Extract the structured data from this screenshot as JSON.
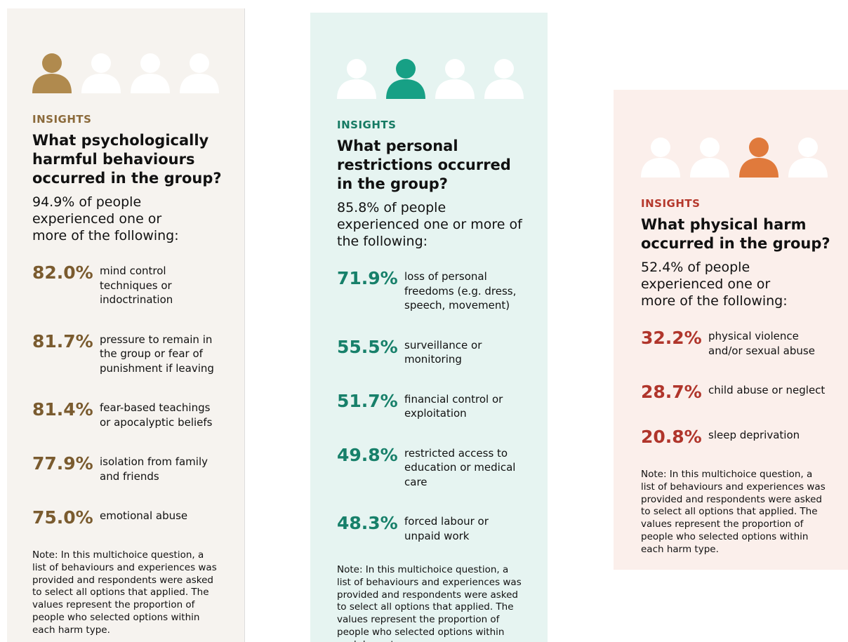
{
  "cards": [
    {
      "label": "INSIGHTS",
      "title": "What psychologically harmful behaviours occurred in the group?",
      "summary": "94.9% of people experienced one or more of the following:",
      "items": [
        {
          "percent": "82.0%",
          "text": "mind control techniques or indoctrination"
        },
        {
          "percent": "81.7%",
          "text": "pressure to remain in the group or fear of punishment if leaving"
        },
        {
          "percent": "81.4%",
          "text": "fear-based teachings or apocalyptic beliefs"
        },
        {
          "percent": "77.9%",
          "text": "isolation from family and friends"
        },
        {
          "percent": "75.0%",
          "text": "emotional abuse"
        }
      ],
      "note": "Note: In this multichoice question, a list of behaviours and experiences was provided and respondents were asked to select all options that applied. The values represent the proportion of people who selected options within each harm type."
    },
    {
      "label": "INSIGHTS",
      "title": "What personal restrictions occurred in the group?",
      "summary": "85.8% of people experienced one or more of the following:",
      "items": [
        {
          "percent": "71.9%",
          "text": "loss of personal freedoms (e.g. dress, speech, movement)"
        },
        {
          "percent": "55.5%",
          "text": "surveillance or monitoring"
        },
        {
          "percent": "51.7%",
          "text": "financial control or exploitation"
        },
        {
          "percent": "49.8%",
          "text": "restricted access to education or medical care"
        },
        {
          "percent": "48.3%",
          "text": "forced labour or unpaid work"
        }
      ],
      "note": "Note: In this multichoice question, a list of behaviours and experiences was provided and respondents were asked to select all options that applied. The values represent the proportion of people who selected options within each harm type."
    },
    {
      "label": "INSIGHTS",
      "title": "What physical harm occurred in the group?",
      "summary": "52.4% of people experienced one or more of the following:",
      "items": [
        {
          "percent": "32.2%",
          "text": "physical violence and/or sexual abuse"
        },
        {
          "percent": "28.7%",
          "text": "child abuse or neglect"
        },
        {
          "percent": "20.8%",
          "text": "sleep deprivation"
        }
      ],
      "note": "Note: In this multichoice question, a list of behaviours and experiences was provided and respondents were asked to select all options that applied. The values represent the proportion of people who selected options within each harm type."
    }
  ]
}
